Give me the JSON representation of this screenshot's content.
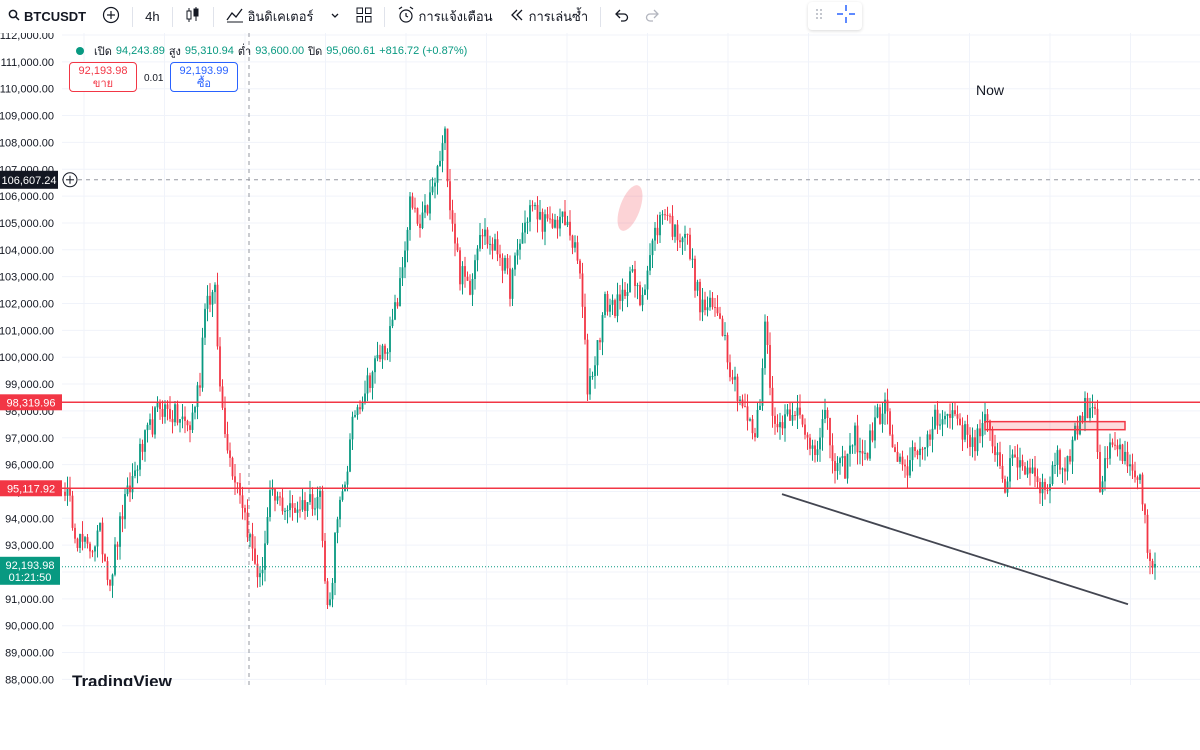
{
  "toolbar": {
    "symbol": "BTCUSDT",
    "interval": "4h",
    "indicators_label": "อินดิเคเตอร์",
    "alerts_label": "การแจ้งเตือน",
    "replay_label": "การเล่นซ้ำ",
    "icons": [
      "search-icon",
      "add-symbol-icon",
      "candles-icon",
      "indicators-icon",
      "chevron-down-icon",
      "layouts-icon",
      "alarm-icon",
      "replay-icon",
      "undo-icon",
      "redo-icon",
      "crosshair-icon"
    ]
  },
  "legend": {
    "open_label": "เปิด",
    "open": "94,243.89",
    "high_label": "สูง",
    "high": "95,310.94",
    "low_label": "ต่ำ",
    "low": "93,600.00",
    "close_label": "ปิด",
    "close": "95,060.61",
    "change": "+816.72 (+0.87%)"
  },
  "trade": {
    "sell_price": "92,193.98",
    "sell_label": "ขาย",
    "spread": "0.01",
    "buy_price": "92,193.99",
    "buy_label": "ซื้อ"
  },
  "annotation_now": "Now",
  "watermark": "TradingView",
  "colors": {
    "up": "#089981",
    "down": "#f23645",
    "hline": "#f23645",
    "trend": "#434651",
    "last": "#089981"
  },
  "chart_data": {
    "type": "candlestick",
    "ylim": [
      88000,
      112000
    ],
    "y_ticks": [
      "112,000.00",
      "111,000.00",
      "110,000.00",
      "109,000.00",
      "108,000.00",
      "107,000.00",
      "106,000.00",
      "105,000.00",
      "104,000.00",
      "103,000.00",
      "102,000.00",
      "101,000.00",
      "100,000.00",
      "99,000.00",
      "98,000.00",
      "97,000.00",
      "96,000.00",
      "95,000.00",
      "94,000.00",
      "93,000.00",
      "92,000.00",
      "91,000.00",
      "90,000.00",
      "89,000.00",
      "88,000.00"
    ],
    "grid": true,
    "horizontal_lines": [
      {
        "price": 98319.96,
        "label": "98,319.96"
      },
      {
        "price": 95117.92,
        "label": "95,117.92"
      }
    ],
    "crosshair": {
      "price": 106607.24,
      "label": "106,607.24"
    },
    "last_price": {
      "price": 92193.98,
      "label": "92,193.98",
      "countdown": "01:21:50"
    },
    "trendline": {
      "start_price": 94900,
      "end_price": 90800
    },
    "zone": {
      "top": 97600,
      "bottom": 97300
    },
    "anchors": [
      [
        0,
        95200
      ],
      [
        5,
        93300
      ],
      [
        9,
        92800
      ],
      [
        14,
        93400
      ],
      [
        18,
        91700
      ],
      [
        23,
        94200
      ],
      [
        30,
        96400
      ],
      [
        38,
        98200
      ],
      [
        44,
        97800
      ],
      [
        50,
        97400
      ],
      [
        54,
        99200
      ],
      [
        56,
        102200
      ],
      [
        60,
        102300
      ],
      [
        62,
        98800
      ],
      [
        66,
        96200
      ],
      [
        70,
        95100
      ],
      [
        74,
        93200
      ],
      [
        78,
        91600
      ],
      [
        82,
        94700
      ],
      [
        86,
        94600
      ],
      [
        90,
        94300
      ],
      [
        96,
        94600
      ],
      [
        102,
        94900
      ],
      [
        104,
        91500
      ],
      [
        106,
        90800
      ],
      [
        108,
        93200
      ],
      [
        112,
        95400
      ],
      [
        116,
        98000
      ],
      [
        124,
        99700
      ],
      [
        130,
        100800
      ],
      [
        134,
        102600
      ],
      [
        138,
        105700
      ],
      [
        142,
        104700
      ],
      [
        148,
        106500
      ],
      [
        152,
        108200
      ],
      [
        154,
        105800
      ],
      [
        158,
        103100
      ],
      [
        162,
        102700
      ],
      [
        166,
        104900
      ],
      [
        170,
        104200
      ],
      [
        174,
        103900
      ],
      [
        178,
        102600
      ],
      [
        182,
        104300
      ],
      [
        186,
        105600
      ],
      [
        190,
        105200
      ],
      [
        194,
        104800
      ],
      [
        198,
        105200
      ],
      [
        202,
        104700
      ],
      [
        206,
        103100
      ],
      [
        209,
        98900
      ],
      [
        212,
        99900
      ],
      [
        216,
        102000
      ],
      [
        222,
        101900
      ],
      [
        226,
        103200
      ],
      [
        230,
        102100
      ],
      [
        236,
        104600
      ],
      [
        240,
        105600
      ],
      [
        244,
        104600
      ],
      [
        248,
        104700
      ],
      [
        252,
        102900
      ],
      [
        254,
        101900
      ],
      [
        258,
        101800
      ],
      [
        262,
        101700
      ],
      [
        266,
        99700
      ],
      [
        270,
        98500
      ],
      [
        274,
        97400
      ],
      [
        276,
        97100
      ],
      [
        278,
        98400
      ],
      [
        280,
        101300
      ],
      [
        284,
        97200
      ],
      [
        288,
        97900
      ],
      [
        292,
        98200
      ],
      [
        296,
        97000
      ],
      [
        300,
        96700
      ],
      [
        304,
        97800
      ],
      [
        308,
        95800
      ],
      [
        312,
        95900
      ],
      [
        316,
        97100
      ],
      [
        320,
        96200
      ],
      [
        324,
        97600
      ],
      [
        328,
        98200
      ],
      [
        332,
        96200
      ],
      [
        336,
        95600
      ],
      [
        340,
        96800
      ],
      [
        344,
        96300
      ],
      [
        348,
        97900
      ],
      [
        352,
        97700
      ],
      [
        356,
        98000
      ],
      [
        360,
        97100
      ],
      [
        364,
        96900
      ],
      [
        368,
        97500
      ],
      [
        372,
        96700
      ],
      [
        376,
        95300
      ],
      [
        380,
        96300
      ],
      [
        384,
        95900
      ],
      [
        388,
        95800
      ],
      [
        392,
        94900
      ],
      [
        396,
        96200
      ],
      [
        400,
        95900
      ],
      [
        404,
        97200
      ],
      [
        408,
        98100
      ],
      [
        412,
        98300
      ],
      [
        414,
        95100
      ],
      [
        418,
        96500
      ],
      [
        422,
        96600
      ],
      [
        426,
        95600
      ],
      [
        430,
        95200
      ],
      [
        432,
        94100
      ],
      [
        434,
        92100
      ],
      [
        436,
        92300
      ]
    ]
  }
}
